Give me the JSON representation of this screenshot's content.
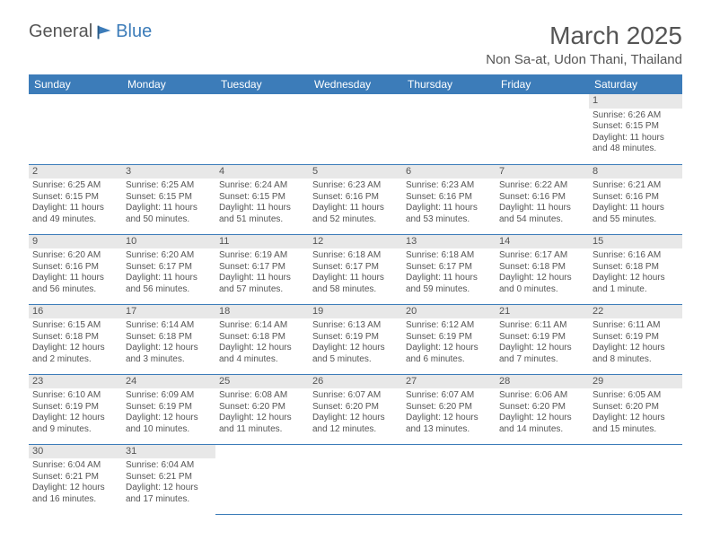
{
  "logo": {
    "part1": "General",
    "part2": "Blue"
  },
  "title": "March 2025",
  "location": "Non Sa-at, Udon Thani, Thailand",
  "weekdays": [
    "Sunday",
    "Monday",
    "Tuesday",
    "Wednesday",
    "Thursday",
    "Friday",
    "Saturday"
  ],
  "colors": {
    "header_bg": "#3c7cb9",
    "header_text": "#ffffff",
    "border": "#3c7cb9",
    "text": "#555555",
    "daynum_bg": "#e8e8e8"
  },
  "grid": [
    [
      null,
      null,
      null,
      null,
      null,
      null,
      {
        "n": "1",
        "sunrise": "6:26 AM",
        "sunset": "6:15 PM",
        "daylight": "11 hours and 48 minutes."
      }
    ],
    [
      {
        "n": "2",
        "sunrise": "6:25 AM",
        "sunset": "6:15 PM",
        "daylight": "11 hours and 49 minutes."
      },
      {
        "n": "3",
        "sunrise": "6:25 AM",
        "sunset": "6:15 PM",
        "daylight": "11 hours and 50 minutes."
      },
      {
        "n": "4",
        "sunrise": "6:24 AM",
        "sunset": "6:15 PM",
        "daylight": "11 hours and 51 minutes."
      },
      {
        "n": "5",
        "sunrise": "6:23 AM",
        "sunset": "6:16 PM",
        "daylight": "11 hours and 52 minutes."
      },
      {
        "n": "6",
        "sunrise": "6:23 AM",
        "sunset": "6:16 PM",
        "daylight": "11 hours and 53 minutes."
      },
      {
        "n": "7",
        "sunrise": "6:22 AM",
        "sunset": "6:16 PM",
        "daylight": "11 hours and 54 minutes."
      },
      {
        "n": "8",
        "sunrise": "6:21 AM",
        "sunset": "6:16 PM",
        "daylight": "11 hours and 55 minutes."
      }
    ],
    [
      {
        "n": "9",
        "sunrise": "6:20 AM",
        "sunset": "6:16 PM",
        "daylight": "11 hours and 56 minutes."
      },
      {
        "n": "10",
        "sunrise": "6:20 AM",
        "sunset": "6:17 PM",
        "daylight": "11 hours and 56 minutes."
      },
      {
        "n": "11",
        "sunrise": "6:19 AM",
        "sunset": "6:17 PM",
        "daylight": "11 hours and 57 minutes."
      },
      {
        "n": "12",
        "sunrise": "6:18 AM",
        "sunset": "6:17 PM",
        "daylight": "11 hours and 58 minutes."
      },
      {
        "n": "13",
        "sunrise": "6:18 AM",
        "sunset": "6:17 PM",
        "daylight": "11 hours and 59 minutes."
      },
      {
        "n": "14",
        "sunrise": "6:17 AM",
        "sunset": "6:18 PM",
        "daylight": "12 hours and 0 minutes."
      },
      {
        "n": "15",
        "sunrise": "6:16 AM",
        "sunset": "6:18 PM",
        "daylight": "12 hours and 1 minute."
      }
    ],
    [
      {
        "n": "16",
        "sunrise": "6:15 AM",
        "sunset": "6:18 PM",
        "daylight": "12 hours and 2 minutes."
      },
      {
        "n": "17",
        "sunrise": "6:14 AM",
        "sunset": "6:18 PM",
        "daylight": "12 hours and 3 minutes."
      },
      {
        "n": "18",
        "sunrise": "6:14 AM",
        "sunset": "6:18 PM",
        "daylight": "12 hours and 4 minutes."
      },
      {
        "n": "19",
        "sunrise": "6:13 AM",
        "sunset": "6:19 PM",
        "daylight": "12 hours and 5 minutes."
      },
      {
        "n": "20",
        "sunrise": "6:12 AM",
        "sunset": "6:19 PM",
        "daylight": "12 hours and 6 minutes."
      },
      {
        "n": "21",
        "sunrise": "6:11 AM",
        "sunset": "6:19 PM",
        "daylight": "12 hours and 7 minutes."
      },
      {
        "n": "22",
        "sunrise": "6:11 AM",
        "sunset": "6:19 PM",
        "daylight": "12 hours and 8 minutes."
      }
    ],
    [
      {
        "n": "23",
        "sunrise": "6:10 AM",
        "sunset": "6:19 PM",
        "daylight": "12 hours and 9 minutes."
      },
      {
        "n": "24",
        "sunrise": "6:09 AM",
        "sunset": "6:19 PM",
        "daylight": "12 hours and 10 minutes."
      },
      {
        "n": "25",
        "sunrise": "6:08 AM",
        "sunset": "6:20 PM",
        "daylight": "12 hours and 11 minutes."
      },
      {
        "n": "26",
        "sunrise": "6:07 AM",
        "sunset": "6:20 PM",
        "daylight": "12 hours and 12 minutes."
      },
      {
        "n": "27",
        "sunrise": "6:07 AM",
        "sunset": "6:20 PM",
        "daylight": "12 hours and 13 minutes."
      },
      {
        "n": "28",
        "sunrise": "6:06 AM",
        "sunset": "6:20 PM",
        "daylight": "12 hours and 14 minutes."
      },
      {
        "n": "29",
        "sunrise": "6:05 AM",
        "sunset": "6:20 PM",
        "daylight": "12 hours and 15 minutes."
      }
    ],
    [
      {
        "n": "30",
        "sunrise": "6:04 AM",
        "sunset": "6:21 PM",
        "daylight": "12 hours and 16 minutes."
      },
      {
        "n": "31",
        "sunrise": "6:04 AM",
        "sunset": "6:21 PM",
        "daylight": "12 hours and 17 minutes."
      },
      null,
      null,
      null,
      null,
      null
    ]
  ],
  "labels": {
    "sunrise": "Sunrise:",
    "sunset": "Sunset:",
    "daylight": "Daylight:"
  }
}
